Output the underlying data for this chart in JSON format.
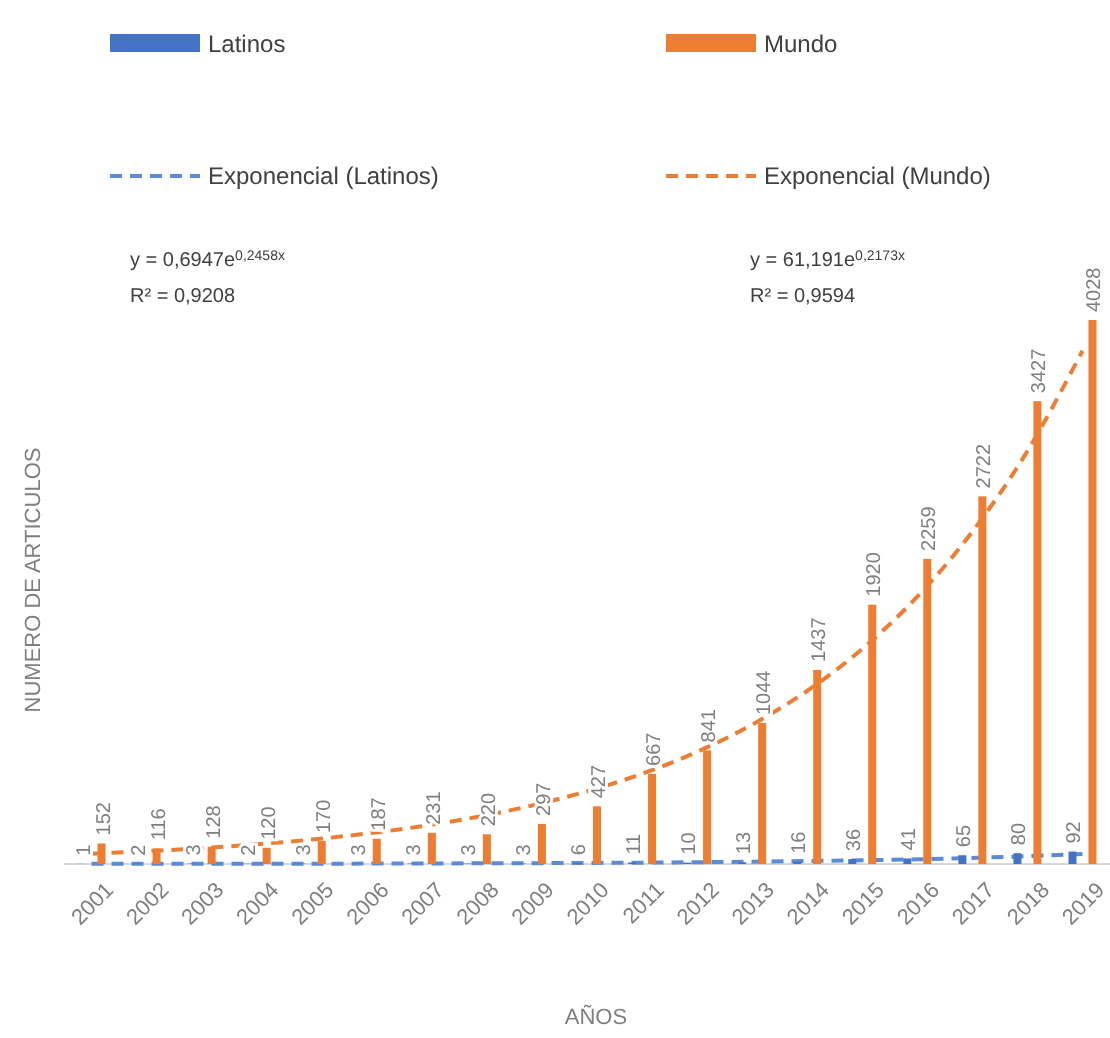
{
  "chart_data": {
    "type": "bar",
    "xlabel": "AÑOS",
    "ylabel": "NUMERO DE ARTICULOS",
    "categories": [
      "2001",
      "2002",
      "2003",
      "2004",
      "2005",
      "2006",
      "2007",
      "2008",
      "2009",
      "2010",
      "2011",
      "2012",
      "2013",
      "2014",
      "2015",
      "2016",
      "2017",
      "2018",
      "2019"
    ],
    "series": [
      {
        "name": "Latinos",
        "color": "#4472c4",
        "values": [
          1,
          2,
          3,
          2,
          3,
          3,
          3,
          3,
          3,
          6,
          11,
          10,
          13,
          16,
          36,
          41,
          65,
          80,
          92
        ],
        "value_labels": [
          "1",
          "2",
          "3",
          "2",
          "3",
          "3",
          "3",
          "3",
          "3",
          "6",
          "11",
          "10",
          "13",
          "16",
          "36",
          "41",
          "65",
          "80",
          "92"
        ]
      },
      {
        "name": "Mundo",
        "color": "#ed7d31",
        "values": [
          152,
          116,
          128,
          120,
          170,
          187,
          231,
          220,
          297,
          427,
          667,
          841,
          1044,
          1437,
          1920,
          2259,
          2722,
          3427,
          4028
        ],
        "value_labels": [
          "152",
          "116",
          "128",
          "120",
          "170",
          "187",
          "231",
          "220",
          "297",
          "427",
          "667",
          "841",
          "1044",
          "1437",
          "1920",
          "2259",
          "2722",
          "3427",
          "4028"
        ]
      },
      {
        "name": "Exponencial (Latinos)",
        "type": "line",
        "line_style": "dashed",
        "color": "#5b8bd6",
        "values": [
          1,
          1,
          1,
          2,
          2,
          3,
          4,
          5,
          6,
          8,
          10,
          13,
          17,
          22,
          28,
          35,
          45,
          58,
          74
        ]
      },
      {
        "name": "Exponencial (Mundo)",
        "type": "line",
        "line_style": "dashed",
        "color": "#ed7d31",
        "values": [
          76,
          95,
          117,
          146,
          181,
          225,
          280,
          348,
          433,
          538,
          668,
          830,
          1032,
          1282,
          1593,
          1980,
          2461,
          3058,
          3800
        ]
      }
    ],
    "tick_labels": "x",
    "legend": "top",
    "grid": false,
    "marker": "none",
    "annotations": [
      "y = 0,6947e$^{0,2458x}$",
      "R² = 0,9208",
      "y = 61,191e$^{0,2173x}$",
      "R² = 0,9594"
    ]
  }
}
